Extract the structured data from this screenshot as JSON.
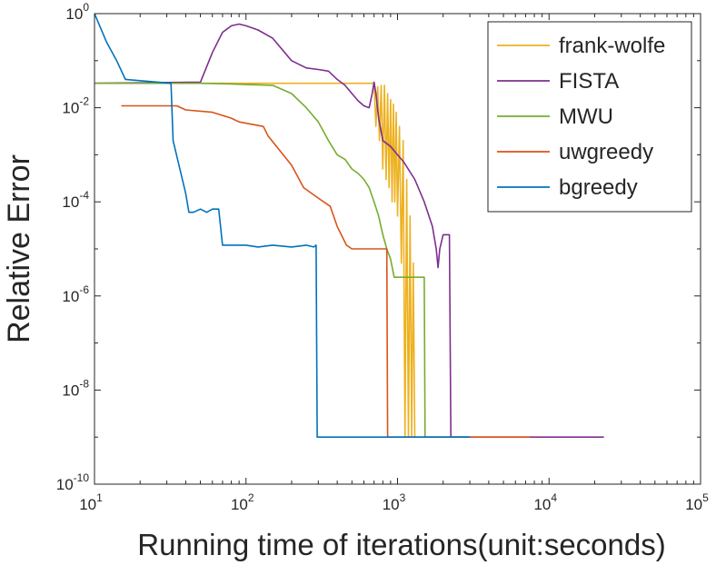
{
  "chart_data": {
    "type": "line",
    "title": "",
    "xlabel": "Running time of iterations(unit:seconds)",
    "ylabel": "Relative Error",
    "xscale": "log",
    "yscale": "log",
    "xlim": [
      10,
      100000
    ],
    "ylim": [
      1e-10,
      1
    ],
    "xticks": [
      {
        "value": 10,
        "base": "10",
        "exp": "1"
      },
      {
        "value": 100,
        "base": "10",
        "exp": "2"
      },
      {
        "value": 1000,
        "base": "10",
        "exp": "3"
      },
      {
        "value": 10000,
        "base": "10",
        "exp": "4"
      },
      {
        "value": 100000,
        "base": "10",
        "exp": "5"
      }
    ],
    "yticks": [
      {
        "value": 1,
        "base": "10",
        "exp": "0"
      },
      {
        "value": 0.01,
        "base": "10",
        "exp": "-2"
      },
      {
        "value": 0.0001,
        "base": "10",
        "exp": "-4"
      },
      {
        "value": 1e-06,
        "base": "10",
        "exp": "-6"
      },
      {
        "value": 1e-08,
        "base": "10",
        "exp": "-8"
      },
      {
        "value": 1e-10,
        "base": "10",
        "exp": "-10"
      }
    ],
    "legend_position": "top-right",
    "grid": false,
    "series": [
      {
        "name": "frank-wolfe",
        "color": "#EDB120",
        "x": [
          10,
          50,
          300,
          380,
          600,
          700,
          720,
          740,
          760,
          780,
          800,
          820,
          840,
          860,
          880,
          900,
          920,
          940,
          960,
          980,
          1000,
          1030,
          1060,
          1090,
          1120,
          1150,
          1180,
          1210,
          1240,
          1270,
          1300,
          1330
        ],
        "y": [
          0.033,
          0.033,
          0.033,
          0.033,
          0.033,
          0.033,
          0.004,
          0.028,
          0.002,
          0.03,
          0.0005,
          0.03,
          0.0003,
          0.02,
          0.0002,
          0.015,
          0.0001,
          0.012,
          0.0001,
          0.008,
          5e-05,
          0.004,
          5e-06,
          0.002,
          1e-09,
          0.0003,
          1e-09,
          5e-05,
          1e-09,
          5e-06,
          1e-09,
          1e-09
        ]
      },
      {
        "name": "FISTA",
        "color": "#7E2F8E",
        "x": [
          10,
          50,
          60,
          70,
          80,
          90,
          100,
          120,
          150,
          200,
          250,
          300,
          350,
          400,
          450,
          500,
          550,
          600,
          650,
          680,
          700,
          720,
          750,
          800,
          900,
          1000,
          1100,
          1300,
          1500,
          1700,
          1800,
          1850,
          1900,
          2000,
          2100,
          2200,
          2250,
          2300,
          23000
        ],
        "y": [
          0.033,
          0.035,
          0.15,
          0.4,
          0.55,
          0.6,
          0.55,
          0.45,
          0.3,
          0.1,
          0.07,
          0.065,
          0.06,
          0.04,
          0.03,
          0.02,
          0.014,
          0.011,
          0.01,
          0.02,
          0.035,
          0.02,
          0.006,
          0.002,
          0.0015,
          0.001,
          0.0007,
          0.0003,
          0.0001,
          3e-05,
          1e-05,
          4e-06,
          1e-05,
          2e-05,
          2e-05,
          2e-05,
          1e-09,
          1e-09,
          1e-09
        ]
      },
      {
        "name": "MWU",
        "color": "#77AC30",
        "x": [
          10,
          50,
          80,
          100,
          150,
          200,
          250,
          300,
          350,
          400,
          450,
          500,
          550,
          600,
          650,
          700,
          750,
          800,
          850,
          900,
          950,
          1000,
          1500,
          1520,
          3000
        ],
        "y": [
          0.033,
          0.033,
          0.032,
          0.031,
          0.03,
          0.02,
          0.01,
          0.005,
          0.002,
          0.001,
          0.0008,
          0.0005,
          0.0004,
          0.0003,
          0.0002,
          0.0001,
          5e-05,
          2e-05,
          1e-05,
          6e-06,
          2.5e-06,
          2.5e-06,
          2.5e-06,
          1e-09,
          1e-09
        ]
      },
      {
        "name": "uwgreedy",
        "color": "#D95319",
        "x": [
          15,
          35,
          40,
          60,
          80,
          90,
          130,
          140,
          200,
          240,
          300,
          360,
          400,
          460,
          500,
          700,
          800,
          850,
          860,
          7500
        ],
        "y": [
          0.011,
          0.011,
          0.009,
          0.008,
          0.006,
          0.005,
          0.004,
          0.0025,
          0.0006,
          0.0002,
          0.00012,
          8e-05,
          3e-05,
          1.2e-05,
          1e-05,
          1e-05,
          1e-05,
          1e-05,
          1e-09,
          1e-09
        ]
      },
      {
        "name": "bgreedy",
        "color": "#0072BD",
        "x": [
          10,
          12,
          14,
          16,
          32,
          33,
          38,
          40,
          42,
          45,
          50,
          55,
          60,
          66,
          70,
          80,
          90,
          100,
          120,
          150,
          200,
          250,
          280,
          290,
          295,
          3000
        ],
        "y": [
          1,
          0.25,
          0.1,
          0.04,
          0.033,
          0.002,
          0.0003,
          0.00015,
          6e-05,
          6e-05,
          7e-05,
          6e-05,
          7e-05,
          7e-05,
          1.2e-05,
          1.2e-05,
          1.2e-05,
          1.2e-05,
          1.1e-05,
          1.2e-05,
          1.1e-05,
          1.2e-05,
          1.1e-05,
          1.2e-05,
          1e-09,
          1e-09
        ]
      }
    ]
  }
}
